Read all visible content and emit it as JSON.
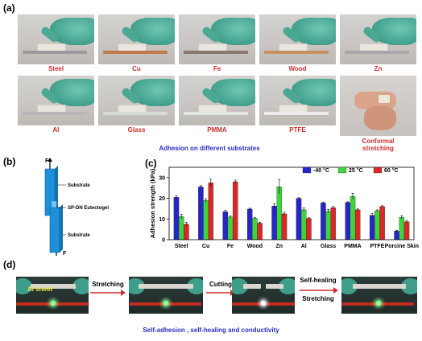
{
  "panels": {
    "a": "(a)",
    "b": "(b)",
    "c": "(c)",
    "d": "(d)"
  },
  "panel_a": {
    "substrates_row1": [
      "Steel",
      "Cu",
      "Fe",
      "Wood",
      "Zn"
    ],
    "substrates_row2": [
      "Al",
      "Glass",
      "PMMA",
      "PTFE"
    ],
    "conformal_caption": [
      "Conformal",
      "stretching"
    ],
    "subtitle": "Adhesion on different substrates",
    "substrate_colors": [
      "#9a9a9e",
      "#c07850",
      "#8a7870",
      "#c89060",
      "#a8a8ac",
      "#b8b8bc",
      "#d8dcd8",
      "#e4e6e4",
      "#ececec"
    ]
  },
  "panel_b": {
    "force_top": "F",
    "force_bottom": "F",
    "label_substrate_top": "Substrate",
    "label_gel": "SP-DN Eutectogel",
    "label_substrate_bottom": "Substrate"
  },
  "panel_d": {
    "al_sheet": "Al sheet",
    "step1": "Stretching",
    "step2": "Cutting",
    "step3_top": "Self-healing",
    "step3_bottom": "Stretching",
    "subtitle": "Self-adhesion , self-healing and conductivity"
  },
  "chart_data": {
    "type": "bar",
    "categories": [
      "Steel",
      "Cu",
      "Fe",
      "Wood",
      "Zn",
      "Al",
      "Glass",
      "PMMA",
      "PTFE",
      "Porcine Skin"
    ],
    "ylabel": "Adhesion strength (kPa)",
    "ylim": [
      0,
      35
    ],
    "yticks": [
      0,
      10,
      20,
      30
    ],
    "legend_position": "top-right",
    "series": [
      {
        "name": "-40 °C",
        "color": "#2525c8",
        "values": [
          20.5,
          25.5,
          13.5,
          14.8,
          16.3,
          20.0,
          17.8,
          18.0,
          11.8,
          4.2
        ],
        "errors": [
          0.8,
          0.6,
          0.8,
          0.4,
          1.0,
          0.3,
          0.4,
          0.3,
          0.8,
          0.3
        ]
      },
      {
        "name": "25 °C",
        "color": "#3ed43e",
        "values": [
          11.2,
          19.0,
          11.0,
          10.3,
          25.6,
          14.5,
          13.8,
          21.0,
          14.0,
          10.8
        ],
        "errors": [
          1.0,
          0.8,
          0.4,
          0.4,
          3.5,
          0.8,
          0.8,
          1.4,
          0.4,
          0.8
        ]
      },
      {
        "name": "60 °C",
        "color": "#d82828",
        "values": [
          7.5,
          27.5,
          28.0,
          8.0,
          12.5,
          10.3,
          15.5,
          14.5,
          16.0,
          8.7
        ],
        "errors": [
          0.8,
          1.8,
          0.8,
          0.4,
          0.8,
          0.3,
          0.6,
          0.6,
          0.4,
          0.6
        ]
      }
    ]
  }
}
